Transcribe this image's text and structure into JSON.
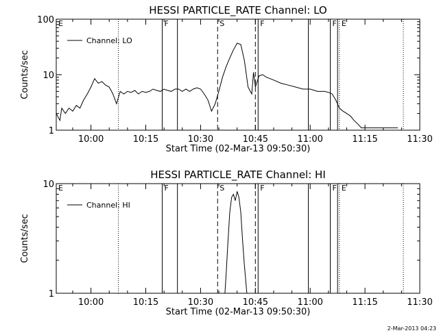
{
  "footer": {
    "timestamp": "2-Mar-2013 04:23"
  },
  "chart_data": [
    {
      "type": "line",
      "title": "HESSI PARTICLE_RATE Channel: LO",
      "xlabel": "Start Time (02-Mar-13 09:50:30)",
      "ylabel": "Counts/sec",
      "yscale": "log",
      "ylim": [
        1,
        100
      ],
      "xlim": [
        "09:50:30",
        "11:30:00"
      ],
      "x_ticks": [
        "10:00",
        "10:15",
        "10:30",
        "10:45",
        "11:00",
        "11:15",
        "11:30"
      ],
      "y_ticks": [
        "1",
        "10",
        "100"
      ],
      "legend": {
        "position": "top-left",
        "entries": [
          "Channel: LO"
        ]
      },
      "series": [
        {
          "name": "Channel: LO",
          "x": [
            "09:50:30",
            "09:51:30",
            "09:52:00",
            "09:53:00",
            "09:54:00",
            "09:55:00",
            "09:56:00",
            "09:57:00",
            "09:58:00",
            "09:59:00",
            "10:00:00",
            "10:01:00",
            "10:02:00",
            "10:03:00",
            "10:04:00",
            "10:05:00",
            "10:06:00",
            "10:07:00",
            "10:08:00",
            "10:09:00",
            "10:10:00",
            "10:11:00",
            "10:12:00",
            "10:13:00",
            "10:14:00",
            "10:15:00",
            "10:16:00",
            "10:17:00",
            "10:18:00",
            "10:19:00",
            "10:20:00",
            "10:21:00",
            "10:22:00",
            "10:23:00",
            "10:24:00",
            "10:25:00",
            "10:26:00",
            "10:27:00",
            "10:28:00",
            "10:29:00",
            "10:30:00",
            "10:31:00",
            "10:32:00",
            "10:33:00",
            "10:34:00",
            "10:35:00",
            "10:36:00",
            "10:37:00",
            "10:38:00",
            "10:39:00",
            "10:40:00",
            "10:41:00",
            "10:42:00",
            "10:43:00",
            "10:44:00",
            "10:44:30",
            "10:45:00",
            "10:46:00",
            "10:47:00",
            "10:48:00",
            "10:49:00",
            "10:50:00",
            "10:52:00",
            "10:54:00",
            "10:56:00",
            "10:58:00",
            "11:00:00",
            "11:02:00",
            "11:04:00",
            "11:05:00",
            "11:06:00",
            "11:07:00",
            "11:08:00",
            "11:09:00",
            "11:10:00",
            "11:11:00",
            "11:12:00",
            "11:13:00",
            "11:14:00",
            "11:16:00",
            "11:18:00",
            "11:20:00",
            "11:22:00",
            "11:24:00"
          ],
          "values": [
            2.0,
            1.5,
            2.5,
            2.0,
            2.5,
            2.2,
            2.8,
            2.5,
            3.5,
            4.5,
            6.0,
            8.5,
            7.0,
            7.5,
            6.5,
            6.0,
            4.5,
            3.0,
            5.0,
            4.5,
            5.0,
            4.8,
            5.2,
            4.5,
            5.0,
            4.8,
            5.0,
            5.5,
            5.2,
            5.0,
            5.5,
            5.2,
            5.0,
            5.5,
            5.5,
            5.0,
            5.5,
            5.0,
            5.5,
            5.8,
            5.5,
            4.5,
            3.5,
            2.2,
            3.0,
            5.0,
            9.0,
            14.0,
            20.0,
            28.0,
            37.0,
            35.0,
            18.0,
            6.0,
            4.5,
            11.0,
            6.0,
            9.5,
            10.0,
            9.0,
            8.5,
            8.0,
            7.0,
            6.5,
            6.0,
            5.5,
            5.5,
            5.0,
            5.0,
            4.8,
            4.5,
            3.5,
            2.5,
            2.2,
            2.0,
            1.8,
            1.5,
            1.3,
            1.1,
            1.1,
            1.1,
            1.1,
            1.1,
            1.1
          ]
        }
      ],
      "markers": [
        {
          "label": "E",
          "time": "09:50:30",
          "style": "none"
        },
        {
          "label": "",
          "time": "10:07:30",
          "style": "dotted"
        },
        {
          "label": "F",
          "time": "10:19:30",
          "style": "solid"
        },
        {
          "label": "",
          "time": "10:23:40",
          "style": "solid"
        },
        {
          "label": "S",
          "time": "10:34:40",
          "style": "dashed"
        },
        {
          "label": "",
          "time": "10:45:00",
          "style": "dashed"
        },
        {
          "label": "F",
          "time": "10:45:45",
          "style": "solid"
        },
        {
          "label": "",
          "time": "10:59:30",
          "style": "solid"
        },
        {
          "label": "F",
          "time": "11:05:30",
          "style": "solid"
        },
        {
          "label": "E",
          "time": "11:08:00",
          "style": "dotted"
        },
        {
          "label": "",
          "time": "11:07:30",
          "style": "solid"
        },
        {
          "label": "",
          "time": "11:25:30",
          "style": "dotted"
        }
      ]
    },
    {
      "type": "line",
      "title": "HESSI PARTICLE_RATE Channel: HI",
      "xlabel": "Start Time (02-Mar-13 09:50:30)",
      "ylabel": "Counts/sec",
      "yscale": "log",
      "ylim": [
        1,
        10
      ],
      "xlim": [
        "09:50:30",
        "11:30:00"
      ],
      "x_ticks": [
        "10:00",
        "10:15",
        "10:30",
        "10:45",
        "11:00",
        "11:15",
        "11:30"
      ],
      "y_ticks": [
        "1",
        "10"
      ],
      "legend": {
        "position": "top-left",
        "entries": [
          "Channel: HI"
        ]
      },
      "series": [
        {
          "name": "Channel: HI",
          "x": [
            "10:36:40",
            "10:37:00",
            "10:37:30",
            "10:38:00",
            "10:38:30",
            "10:39:00",
            "10:39:30",
            "10:40:00",
            "10:40:30",
            "10:41:00",
            "10:41:30",
            "10:42:00",
            "10:42:40"
          ],
          "values": [
            1.0,
            1.5,
            3.0,
            5.5,
            7.5,
            8.0,
            7.0,
            8.5,
            7.5,
            5.5,
            3.0,
            1.8,
            1.0
          ]
        }
      ],
      "markers": [
        {
          "label": "E",
          "time": "09:50:30",
          "style": "none"
        },
        {
          "label": "",
          "time": "10:07:30",
          "style": "dotted"
        },
        {
          "label": "F",
          "time": "10:19:30",
          "style": "solid"
        },
        {
          "label": "",
          "time": "10:23:40",
          "style": "solid"
        },
        {
          "label": "S",
          "time": "10:34:40",
          "style": "dashed"
        },
        {
          "label": "",
          "time": "10:45:00",
          "style": "dashed"
        },
        {
          "label": "F",
          "time": "10:45:45",
          "style": "solid"
        },
        {
          "label": "",
          "time": "10:59:30",
          "style": "solid"
        },
        {
          "label": "F",
          "time": "11:05:30",
          "style": "solid"
        },
        {
          "label": "E",
          "time": "11:08:00",
          "style": "dotted"
        },
        {
          "label": "",
          "time": "11:07:30",
          "style": "solid"
        },
        {
          "label": "",
          "time": "11:25:30",
          "style": "dotted"
        }
      ]
    }
  ]
}
